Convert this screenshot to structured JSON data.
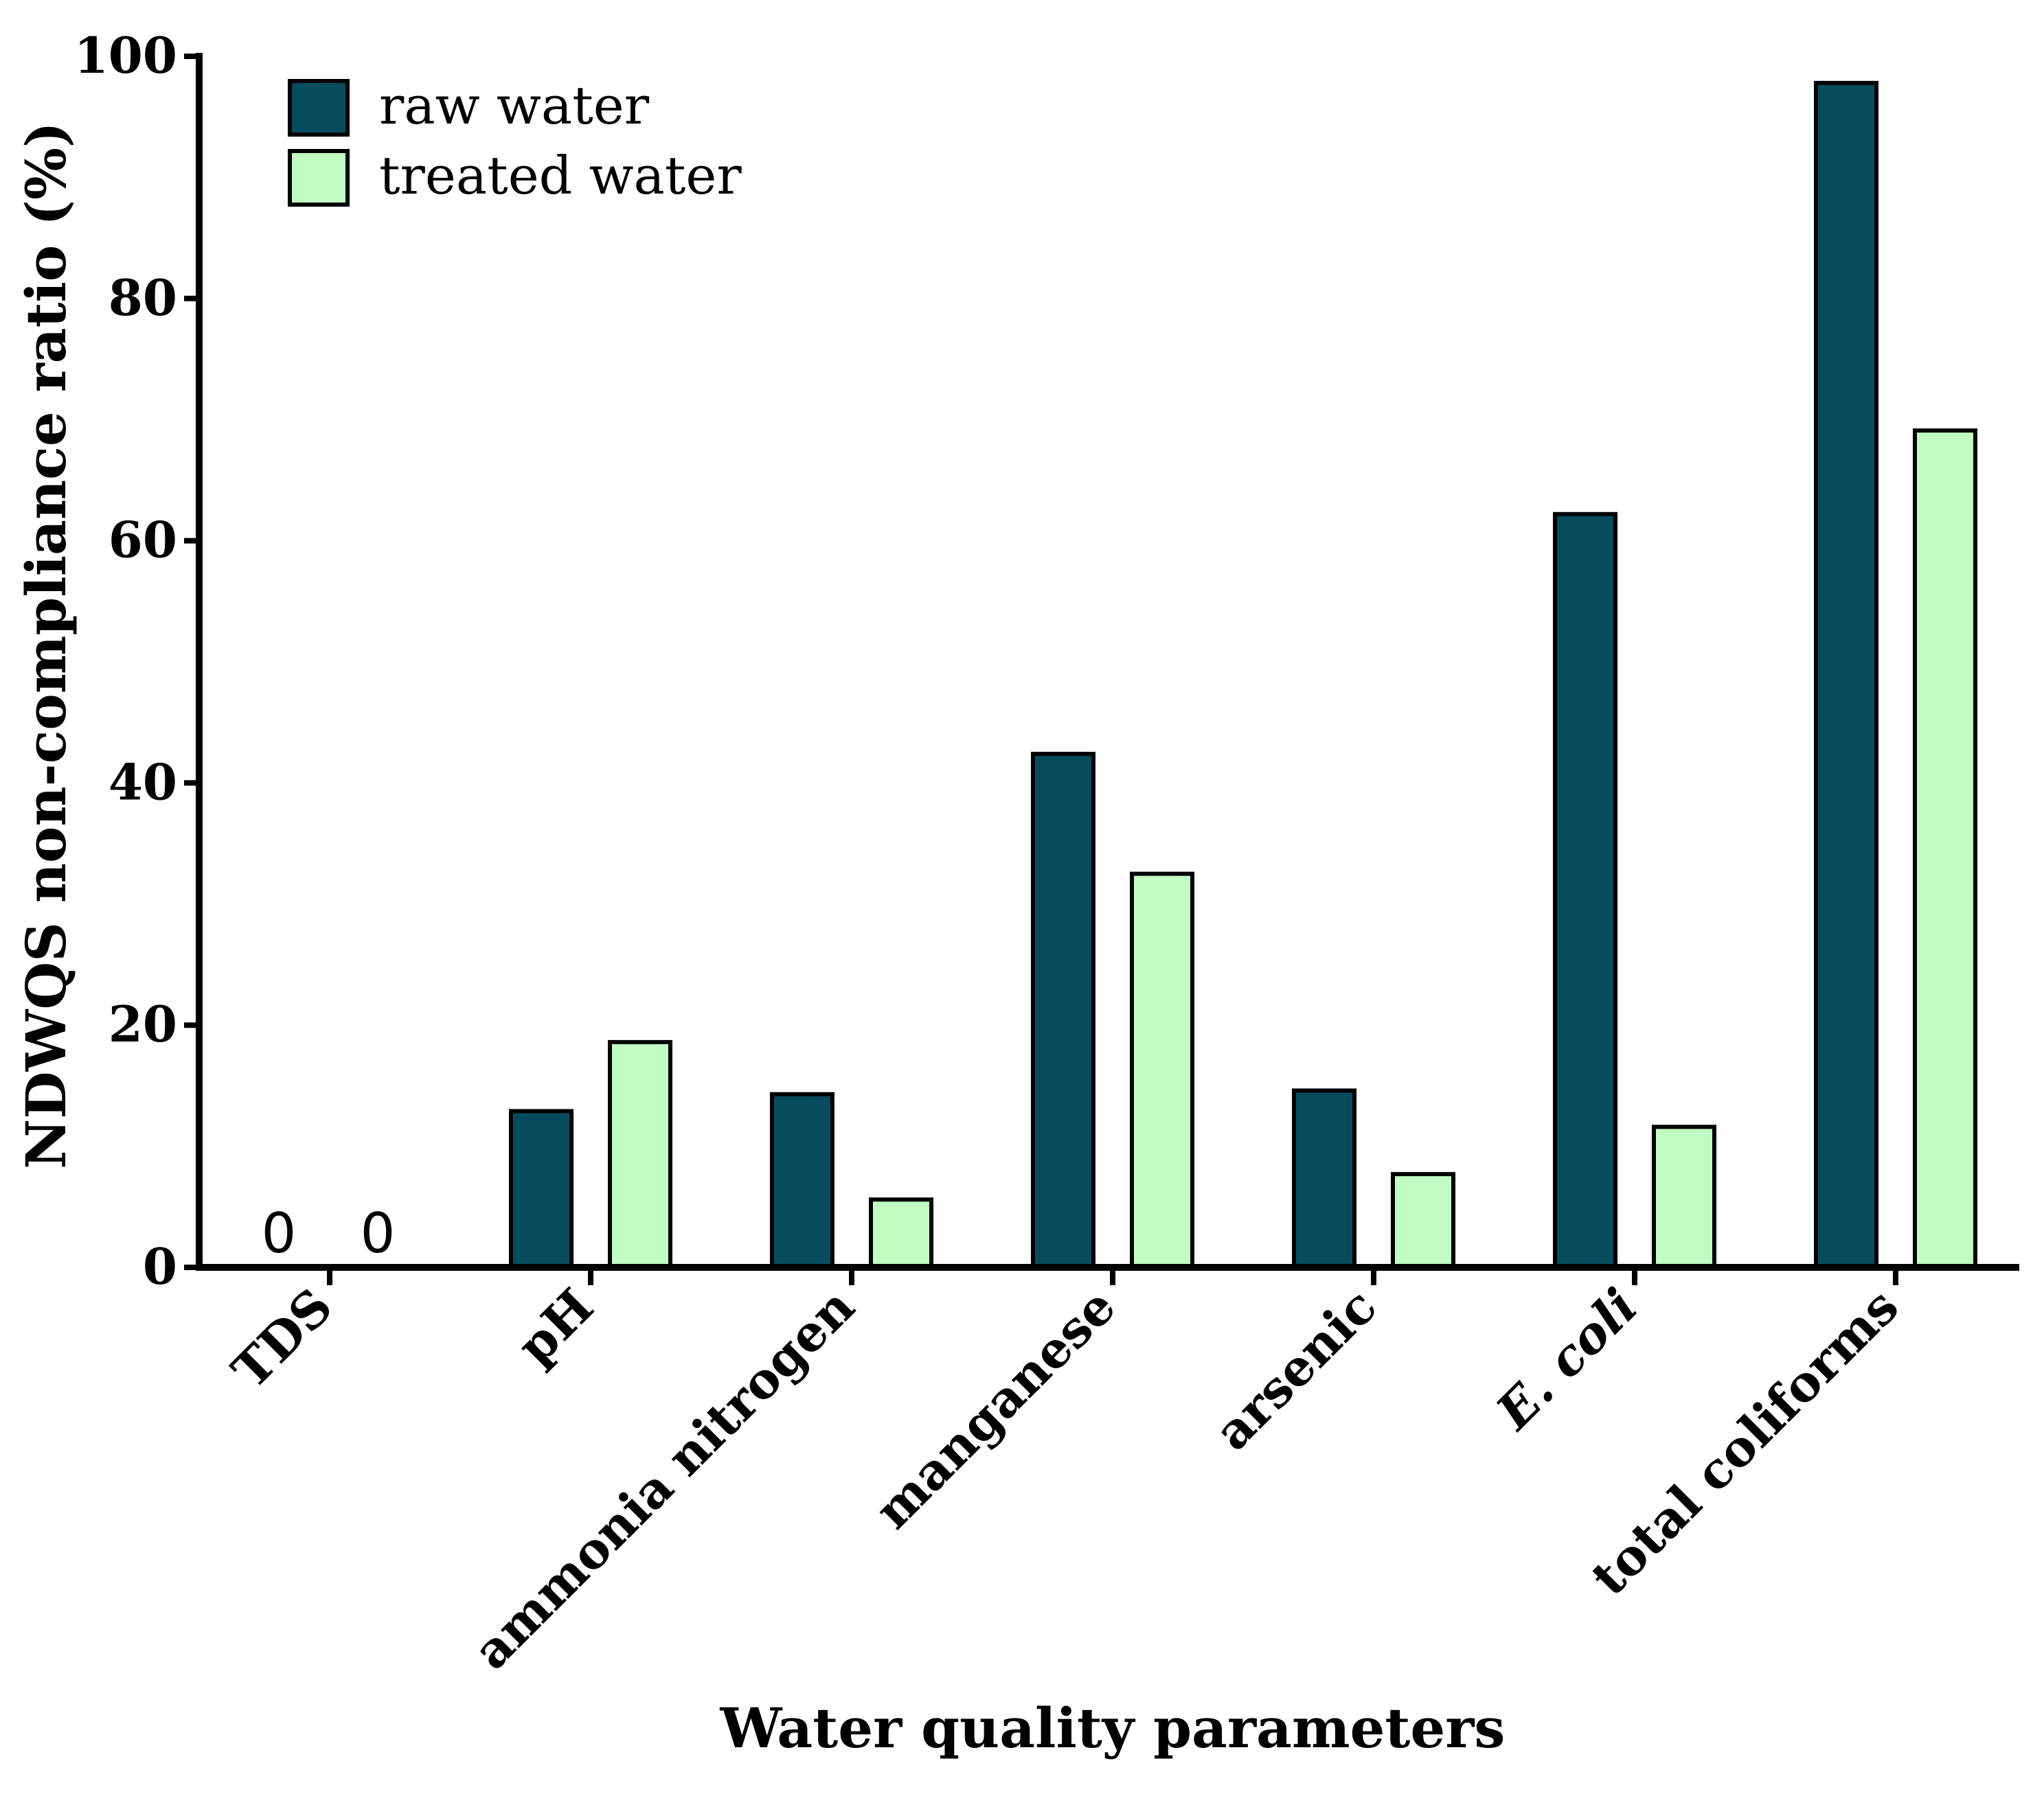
{
  "chart_data": {
    "type": "bar",
    "categories": [
      "TDS",
      "pH",
      "ammonia nitrogen",
      "manganese",
      "arsenic",
      "E. coli",
      "total coliforms"
    ],
    "italic_categories": [
      "E. coli"
    ],
    "series": [
      {
        "name": "raw water",
        "color": "#074c5e",
        "values": [
          0,
          12.9,
          14.3,
          42.4,
          14.6,
          62.2,
          97.8
        ]
      },
      {
        "name": "treated water",
        "color": "#c1fcc3",
        "values": [
          0,
          18.6,
          5.6,
          32.5,
          7.7,
          11.6,
          69.1
        ]
      }
    ],
    "zero_value_labels": [
      "0",
      "0"
    ],
    "xlabel": "Water quality parameters",
    "ylabel": "NDWQS non-compliance ratio (%)",
    "ylim": [
      0,
      100
    ],
    "yticks": [
      "0",
      "20",
      "40",
      "60",
      "80",
      "100"
    ],
    "legend_position": "top-left",
    "grid": false
  }
}
